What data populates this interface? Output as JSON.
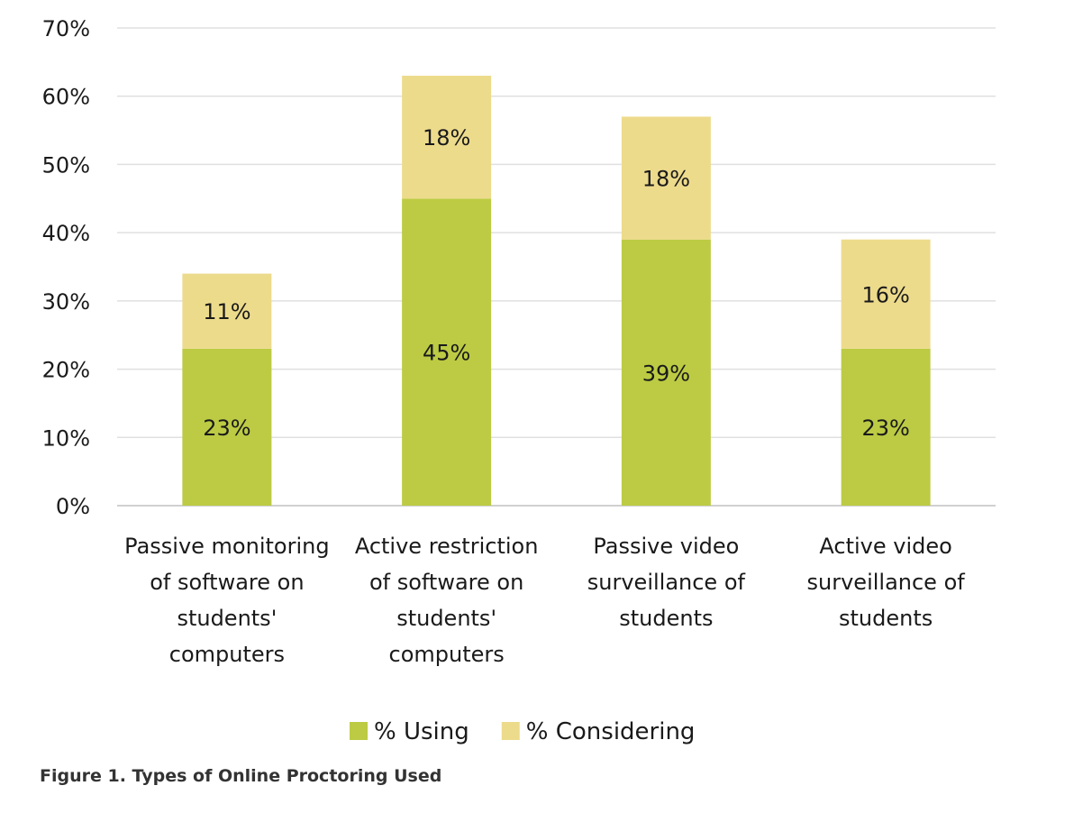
{
  "chart_data": {
    "type": "bar",
    "stacked": true,
    "categories": [
      "Passive monitoring of software on students' computers",
      "Active restriction of software on students' computers",
      "Passive video surveillance of students",
      "Active video surveillance of students"
    ],
    "series": [
      {
        "name": "% Using",
        "values": [
          23,
          45,
          39,
          23
        ],
        "color": "#bccb43"
      },
      {
        "name": "% Considering",
        "values": [
          11,
          18,
          18,
          16
        ],
        "color": "#eddb8c"
      }
    ],
    "ylim": [
      0,
      70
    ],
    "yticks": [
      0,
      10,
      20,
      30,
      40,
      50,
      60,
      70
    ],
    "ytick_format": "%",
    "grid": true,
    "legend_placement": "bottom",
    "xlabel": "",
    "ylabel": ""
  },
  "caption": "Figure 1. Types of Online Proctoring Used"
}
